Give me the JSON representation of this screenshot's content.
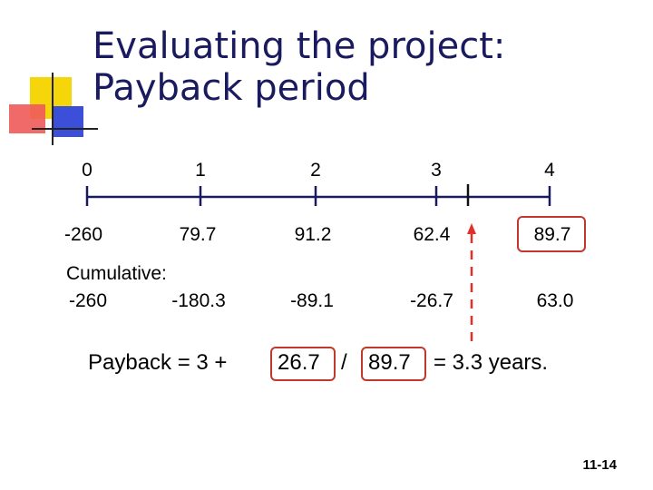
{
  "title_line1": "Evaluating the project:",
  "title_line2": "Payback period",
  "timeline": {
    "periods": [
      "0",
      "1",
      "2",
      "3",
      "4"
    ],
    "cash_flows": [
      "-260",
      "79.7",
      "91.2",
      "62.4",
      "89.7"
    ]
  },
  "cumulative": {
    "label": "Cumulative:",
    "values": [
      "-260",
      "-180.3",
      "-89.1",
      "-26.7",
      "63.0"
    ]
  },
  "formula": {
    "prefix": "Payback = 3 +",
    "numerator": "26.7",
    "divider": "/",
    "denominator": "89.7",
    "suffix": "= 3.3 years."
  },
  "slide_number": "11-14",
  "colors": {
    "title": "#1a1a5e",
    "timeline_line": "#1a1a5e",
    "highlight": "#c0392b",
    "dash": "#e0302a"
  }
}
